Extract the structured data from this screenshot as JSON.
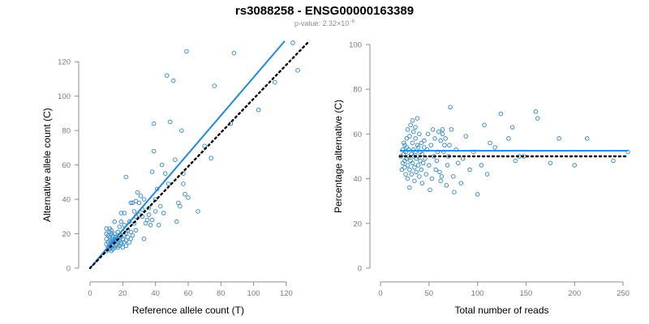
{
  "header": {
    "title": "rs3088258 - ENSG00000163389",
    "pvalue_prefix": "p-value: 2.32×10",
    "pvalue_exp": "−6"
  },
  "colors": {
    "points": "#2b86c4",
    "fit_line": "#1e88e5",
    "reference_line": "#000000",
    "axis": "#8c8c8c"
  },
  "chart_data": [
    {
      "type": "scatter",
      "title": "",
      "xlabel": "Reference allele count (T)",
      "ylabel": "Alternative allele count (C)",
      "xlim": [
        0,
        125
      ],
      "ylim": [
        0,
        130
      ],
      "xticks": [
        0,
        20,
        40,
        60,
        80,
        100,
        120
      ],
      "yticks": [
        0,
        20,
        40,
        60,
        80,
        100,
        120
      ],
      "grid": false,
      "fit_line": {
        "x": [
          0,
          119
        ],
        "y": [
          0,
          132
        ],
        "style": "solid",
        "color": "#1e88e5"
      },
      "reference_line": {
        "x": [
          0,
          133
        ],
        "y": [
          0,
          131
        ],
        "style": "dotted",
        "color": "#000000"
      },
      "points": [
        [
          10,
          10
        ],
        [
          10,
          14
        ],
        [
          10,
          17
        ],
        [
          10,
          20
        ],
        [
          10,
          23
        ],
        [
          11,
          12
        ],
        [
          11,
          15
        ],
        [
          11,
          19
        ],
        [
          12,
          11
        ],
        [
          12,
          13
        ],
        [
          12,
          16
        ],
        [
          12,
          18
        ],
        [
          12,
          21
        ],
        [
          12,
          23
        ],
        [
          13,
          10
        ],
        [
          13,
          12
        ],
        [
          13,
          15
        ],
        [
          13,
          17
        ],
        [
          13,
          20
        ],
        [
          13,
          22
        ],
        [
          14,
          11
        ],
        [
          14,
          13
        ],
        [
          14,
          14
        ],
        [
          14,
          16
        ],
        [
          14,
          18
        ],
        [
          14,
          19
        ],
        [
          15,
          12
        ],
        [
          15,
          15
        ],
        [
          15,
          17
        ],
        [
          15,
          20
        ],
        [
          15,
          27
        ],
        [
          16,
          13
        ],
        [
          16,
          14
        ],
        [
          16,
          16
        ],
        [
          16,
          18
        ],
        [
          17,
          12
        ],
        [
          17,
          15
        ],
        [
          17,
          17
        ],
        [
          17,
          21
        ],
        [
          18,
          13
        ],
        [
          18,
          16
        ],
        [
          18,
          19
        ],
        [
          18,
          24
        ],
        [
          19,
          14
        ],
        [
          19,
          15
        ],
        [
          19,
          18
        ],
        [
          19,
          27
        ],
        [
          19,
          32
        ],
        [
          20,
          12
        ],
        [
          20,
          17
        ],
        [
          20,
          21
        ],
        [
          21,
          15
        ],
        [
          21,
          19
        ],
        [
          21,
          25
        ],
        [
          21,
          32
        ],
        [
          22,
          13
        ],
        [
          22,
          16
        ],
        [
          22,
          20
        ],
        [
          22,
          53
        ],
        [
          23,
          18
        ],
        [
          23,
          22
        ],
        [
          24,
          15
        ],
        [
          24,
          27
        ],
        [
          25,
          17
        ],
        [
          25,
          21
        ],
        [
          25,
          38
        ],
        [
          26,
          19
        ],
        [
          26,
          38
        ],
        [
          27,
          26
        ],
        [
          27,
          33
        ],
        [
          28,
          22
        ],
        [
          28,
          30
        ],
        [
          28,
          39
        ],
        [
          29,
          44
        ],
        [
          30,
          31
        ],
        [
          30,
          38
        ],
        [
          31,
          42
        ],
        [
          32,
          30
        ],
        [
          32,
          34
        ],
        [
          33,
          17
        ],
        [
          33,
          40
        ],
        [
          34,
          26
        ],
        [
          35,
          28
        ],
        [
          36,
          31
        ],
        [
          36,
          35
        ],
        [
          37,
          25
        ],
        [
          38,
          28
        ],
        [
          38,
          56
        ],
        [
          39,
          68
        ],
        [
          39,
          84
        ],
        [
          40,
          33
        ],
        [
          40,
          40
        ],
        [
          41,
          46
        ],
        [
          42,
          25
        ],
        [
          43,
          36
        ],
        [
          44,
          60
        ],
        [
          45,
          32
        ],
        [
          46,
          55
        ],
        [
          47,
          112
        ],
        [
          48,
          49
        ],
        [
          49,
          85
        ],
        [
          51,
          109
        ],
        [
          52,
          63
        ],
        [
          53,
          27
        ],
        [
          54,
          38
        ],
        [
          55,
          36
        ],
        [
          56,
          80
        ],
        [
          57,
          49
        ],
        [
          57,
          55
        ],
        [
          58,
          43
        ],
        [
          59,
          126
        ],
        [
          60,
          41
        ],
        [
          66,
          33
        ],
        [
          70,
          71
        ],
        [
          74,
          64
        ],
        [
          76,
          106
        ],
        [
          86,
          84
        ],
        [
          88,
          125
        ],
        [
          103,
          92
        ],
        [
          113,
          108
        ],
        [
          124,
          131
        ],
        [
          127,
          115
        ]
      ]
    },
    {
      "type": "scatter",
      "title": "",
      "xlabel": "Total number of reads",
      "ylabel": "Percentage alternative (C)",
      "xlim": [
        0,
        255
      ],
      "ylim": [
        0,
        100
      ],
      "xticks": [
        0,
        50,
        100,
        150,
        200,
        250
      ],
      "yticks": [
        0,
        20,
        40,
        60,
        80,
        100
      ],
      "grid": false,
      "fit_line": {
        "x": [
          20,
          255
        ],
        "y": [
          52.5,
          52.5
        ],
        "style": "solid",
        "color": "#1e88e5"
      },
      "reference_line": {
        "x": [
          20,
          255
        ],
        "y": [
          50,
          50
        ],
        "style": "dotted",
        "color": "#000000"
      },
      "points": [
        [
          21,
          50
        ],
        [
          22,
          44
        ],
        [
          23,
          47
        ],
        [
          23,
          53
        ],
        [
          24,
          51
        ],
        [
          24,
          56
        ],
        [
          25,
          45
        ],
        [
          25,
          48
        ],
        [
          25,
          55
        ],
        [
          26,
          42
        ],
        [
          26,
          52
        ],
        [
          27,
          49
        ],
        [
          27,
          54
        ],
        [
          27,
          58
        ],
        [
          28,
          46
        ],
        [
          28,
          40
        ],
        [
          28,
          62
        ],
        [
          29,
          50
        ],
        [
          29,
          53
        ],
        [
          30,
          36
        ],
        [
          30,
          44
        ],
        [
          30,
          59
        ],
        [
          31,
          48
        ],
        [
          31,
          64
        ],
        [
          32,
          51
        ],
        [
          32,
          42
        ],
        [
          33,
          56
        ],
        [
          33,
          47
        ],
        [
          33,
          66
        ],
        [
          34,
          50
        ],
        [
          34,
          53
        ],
        [
          34,
          61
        ],
        [
          35,
          45
        ],
        [
          35,
          39
        ],
        [
          36,
          52
        ],
        [
          36,
          58
        ],
        [
          36,
          63
        ],
        [
          37,
          49
        ],
        [
          37,
          43
        ],
        [
          38,
          55
        ],
        [
          38,
          67
        ],
        [
          38,
          50
        ],
        [
          39,
          46
        ],
        [
          39,
          54
        ],
        [
          40,
          41
        ],
        [
          40,
          60
        ],
        [
          41,
          52
        ],
        [
          41,
          48
        ],
        [
          42,
          56
        ],
        [
          42,
          44
        ],
        [
          43,
          51
        ],
        [
          43,
          38
        ],
        [
          44,
          47
        ],
        [
          45,
          57
        ],
        [
          45,
          54
        ],
        [
          46,
          49
        ],
        [
          47,
          42
        ],
        [
          48,
          53
        ],
        [
          49,
          60
        ],
        [
          50,
          46
        ],
        [
          51,
          35
        ],
        [
          52,
          55
        ],
        [
          53,
          40
        ],
        [
          54,
          62
        ],
        [
          55,
          50
        ],
        [
          56,
          58
        ],
        [
          57,
          44
        ],
        [
          58,
          48
        ],
        [
          59,
          52
        ],
        [
          60,
          61
        ],
        [
          61,
          43
        ],
        [
          62,
          39
        ],
        [
          62,
          57
        ],
        [
          63,
          41
        ],
        [
          64,
          60
        ],
        [
          64,
          62
        ],
        [
          65,
          52
        ],
        [
          66,
          55
        ],
        [
          67,
          58
        ],
        [
          68,
          37
        ],
        [
          69,
          46
        ],
        [
          70,
          50
        ],
        [
          71,
          55
        ],
        [
          72,
          72
        ],
        [
          73,
          62
        ],
        [
          75,
          41
        ],
        [
          76,
          34
        ],
        [
          78,
          53
        ],
        [
          80,
          47
        ],
        [
          83,
          38
        ],
        [
          85,
          49
        ],
        [
          88,
          59
        ],
        [
          92,
          44
        ],
        [
          96,
          52
        ],
        [
          100,
          33
        ],
        [
          104,
          46
        ],
        [
          107,
          64
        ],
        [
          110,
          42
        ],
        [
          113,
          56
        ],
        [
          118,
          54
        ],
        [
          124,
          69
        ],
        [
          132,
          58
        ],
        [
          136,
          63
        ],
        [
          139,
          48
        ],
        [
          143,
          50
        ],
        [
          148,
          50
        ],
        [
          160,
          70
        ],
        [
          162,
          67
        ],
        [
          175,
          47
        ],
        [
          184,
          58
        ],
        [
          200,
          46
        ],
        [
          213,
          58
        ],
        [
          240,
          48
        ],
        [
          255,
          52
        ]
      ]
    }
  ]
}
